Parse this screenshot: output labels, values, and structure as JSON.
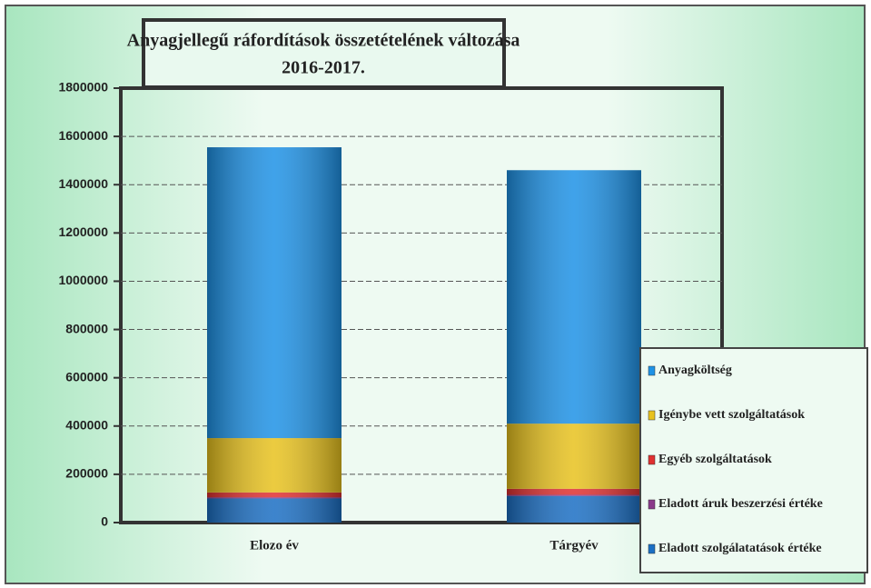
{
  "chart_data": {
    "type": "stacked_bar",
    "title": "Anyagjellegű ráfordítások összetételének változása",
    "subtitle": "2016-2017.",
    "categories": [
      "Elozo év",
      "Tárgyév"
    ],
    "series": [
      {
        "name": "Eladott szolgálatatások értéke",
        "color": "#1b6fc4",
        "values": [
          100000,
          110000
        ]
      },
      {
        "name": "Eladott áruk beszerzési értéke",
        "color": "#8a3a8a",
        "values": [
          5000,
          5000
        ]
      },
      {
        "name": "Egyéb szolgáltatások",
        "color": "#e03030",
        "values": [
          20000,
          25000
        ]
      },
      {
        "name": "Igénybe vett szolgáltatások",
        "color": "#e8c21e",
        "values": [
          225000,
          270000
        ]
      },
      {
        "name": "Anyagköltség",
        "color": "#1e92e6",
        "values": [
          1205000,
          1050000
        ]
      }
    ],
    "ylim": [
      0,
      1800000
    ],
    "yticks": [
      0,
      200000,
      400000,
      600000,
      800000,
      1000000,
      1200000,
      1400000,
      1600000,
      1800000
    ],
    "grid": true,
    "legend": "right"
  }
}
